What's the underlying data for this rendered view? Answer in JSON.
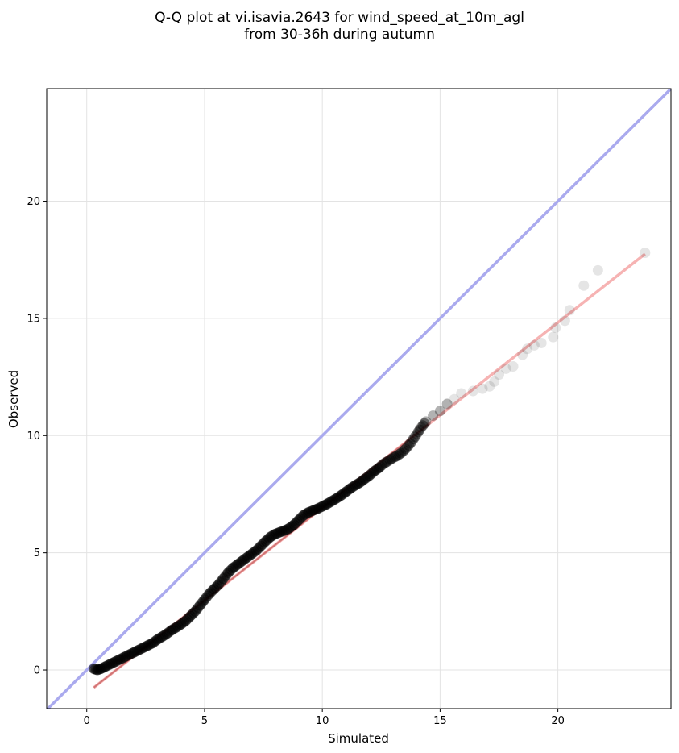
{
  "chart_data": {
    "type": "scatter",
    "title_line1": "Q-Q plot at vi.isavia.2643 for wind_speed_at_10m_agl",
    "title_line2": "from 30-36h during autumn",
    "xlabel": "Simulated",
    "ylabel": "Observed",
    "xlim": [
      -1.7,
      24.8
    ],
    "ylim": [
      -1.65,
      24.8
    ],
    "xticks": [
      0,
      5,
      10,
      15,
      20
    ],
    "yticks": [
      0,
      5,
      10,
      15,
      20
    ],
    "grid": true,
    "identity_line": {
      "color": "#aaaaee",
      "from": [
        -1.7,
        -1.7
      ],
      "to": [
        24.8,
        24.8
      ]
    },
    "fit_line": {
      "color": "#f4a6a6",
      "from": [
        0.3,
        -0.75
      ],
      "to": [
        23.7,
        17.75
      ]
    },
    "point_color": "#000000",
    "series": [
      {
        "points": [
          [
            0.3,
            0.05
          ],
          [
            0.45,
            0.0
          ],
          [
            0.6,
            0.05
          ],
          [
            0.8,
            0.15
          ],
          [
            1.0,
            0.25
          ],
          [
            1.2,
            0.35
          ],
          [
            1.4,
            0.45
          ],
          [
            1.6,
            0.55
          ],
          [
            1.8,
            0.65
          ],
          [
            2.0,
            0.75
          ],
          [
            2.2,
            0.85
          ],
          [
            2.4,
            0.95
          ],
          [
            2.6,
            1.05
          ],
          [
            2.8,
            1.15
          ],
          [
            3.0,
            1.3
          ],
          [
            3.2,
            1.42
          ],
          [
            3.4,
            1.55
          ],
          [
            3.6,
            1.7
          ],
          [
            3.8,
            1.82
          ],
          [
            4.0,
            1.95
          ],
          [
            4.2,
            2.1
          ],
          [
            4.4,
            2.3
          ],
          [
            4.6,
            2.5
          ],
          [
            4.8,
            2.75
          ],
          [
            5.0,
            3.0
          ],
          [
            5.2,
            3.25
          ],
          [
            5.4,
            3.45
          ],
          [
            5.6,
            3.65
          ],
          [
            5.8,
            3.9
          ],
          [
            6.0,
            4.15
          ],
          [
            6.2,
            4.35
          ],
          [
            6.4,
            4.5
          ],
          [
            6.6,
            4.65
          ],
          [
            6.8,
            4.8
          ],
          [
            7.0,
            4.95
          ],
          [
            7.2,
            5.1
          ],
          [
            7.4,
            5.3
          ],
          [
            7.6,
            5.5
          ],
          [
            7.8,
            5.68
          ],
          [
            8.0,
            5.8
          ],
          [
            8.2,
            5.88
          ],
          [
            8.4,
            5.95
          ],
          [
            8.6,
            6.05
          ],
          [
            8.8,
            6.2
          ],
          [
            9.0,
            6.4
          ],
          [
            9.2,
            6.6
          ],
          [
            9.4,
            6.72
          ],
          [
            9.6,
            6.8
          ],
          [
            9.8,
            6.88
          ],
          [
            10.0,
            6.98
          ],
          [
            10.2,
            7.08
          ],
          [
            10.4,
            7.2
          ],
          [
            10.6,
            7.32
          ],
          [
            10.8,
            7.45
          ],
          [
            11.0,
            7.6
          ],
          [
            11.2,
            7.75
          ],
          [
            11.4,
            7.88
          ],
          [
            11.6,
            8.0
          ],
          [
            11.8,
            8.15
          ],
          [
            12.0,
            8.3
          ],
          [
            12.2,
            8.48
          ],
          [
            12.4,
            8.62
          ],
          [
            12.6,
            8.8
          ],
          [
            12.8,
            8.92
          ],
          [
            13.0,
            9.05
          ],
          [
            13.2,
            9.15
          ],
          [
            13.4,
            9.3
          ],
          [
            13.6,
            9.5
          ],
          [
            13.8,
            9.75
          ],
          [
            14.0,
            10.05
          ],
          [
            14.2,
            10.35
          ],
          [
            14.4,
            10.6
          ],
          [
            14.7,
            10.85
          ],
          [
            15.0,
            11.05
          ],
          [
            15.3,
            11.35
          ],
          [
            15.6,
            11.55
          ],
          [
            15.9,
            11.8
          ],
          [
            16.4,
            11.9
          ],
          [
            16.8,
            12.0
          ],
          [
            17.1,
            12.1
          ],
          [
            17.3,
            12.3
          ],
          [
            17.5,
            12.6
          ],
          [
            17.8,
            12.85
          ],
          [
            18.1,
            12.95
          ],
          [
            18.5,
            13.45
          ],
          [
            18.7,
            13.7
          ],
          [
            19.0,
            13.85
          ],
          [
            19.3,
            13.95
          ],
          [
            19.8,
            14.2
          ],
          [
            19.9,
            14.6
          ],
          [
            20.3,
            14.9
          ],
          [
            20.5,
            15.35
          ],
          [
            21.1,
            16.4
          ],
          [
            21.7,
            17.05
          ],
          [
            23.7,
            17.8
          ]
        ]
      }
    ]
  }
}
